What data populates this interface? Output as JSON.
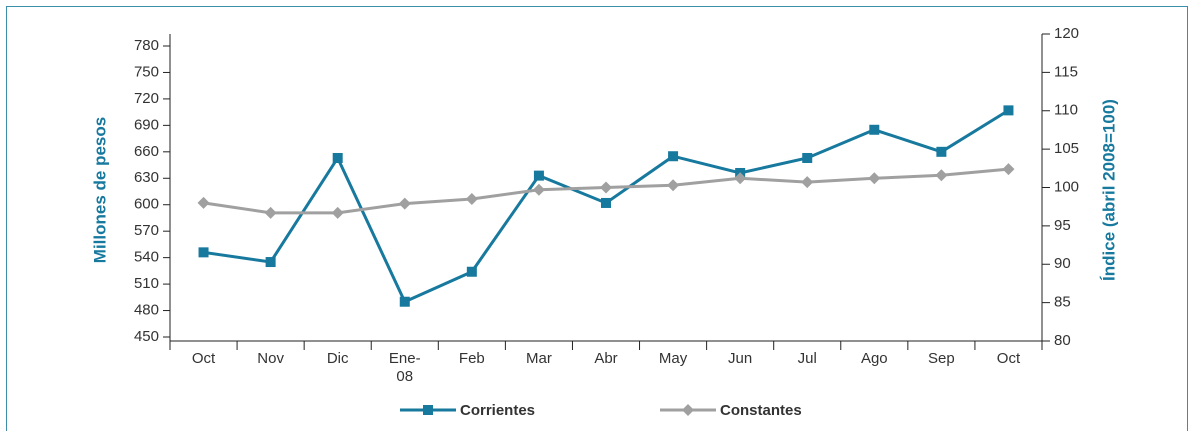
{
  "chart_data": {
    "type": "line",
    "categories": [
      "Oct",
      "Nov",
      "Dic",
      "Ene-08",
      "Feb",
      "Mar",
      "Abr",
      "May",
      "Jun",
      "Jul",
      "Ago",
      "Sep",
      "Oct"
    ],
    "ylabel": "Millones de pesos",
    "y2label": "Índice (abril 2008=100)",
    "ylim": [
      450,
      780
    ],
    "yticks": [
      450,
      480,
      510,
      540,
      570,
      600,
      630,
      660,
      690,
      720,
      750,
      780
    ],
    "y2lim": [
      80,
      120
    ],
    "y2ticks": [
      80,
      85,
      90,
      95,
      100,
      105,
      110,
      115,
      120
    ],
    "legend": "bottom",
    "series": [
      {
        "name": "Corrientes",
        "color": "#17799e",
        "marker": "square",
        "values": [
          546,
          535,
          653,
          490,
          524,
          633,
          602,
          655,
          636,
          653,
          685,
          660,
          707
        ]
      },
      {
        "name": "Constantes",
        "color": "#a0a0a0",
        "marker": "diamond",
        "axis": "y2",
        "values": [
          98.0,
          96.7,
          96.7,
          97.9,
          98.5,
          99.7,
          100,
          100.3,
          101.2,
          100.7,
          101.2,
          101.6,
          102.4
        ]
      }
    ]
  }
}
